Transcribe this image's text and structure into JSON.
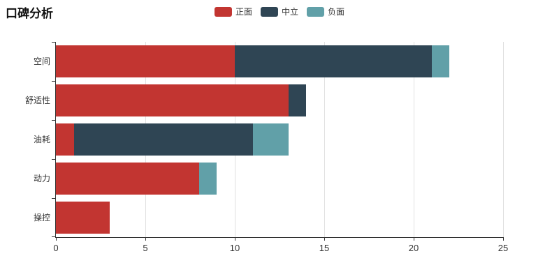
{
  "chart_data": {
    "type": "bar",
    "orientation": "horizontal",
    "stacked": true,
    "title": "口碑分析",
    "categories": [
      "空间",
      "舒适性",
      "油耗",
      "动力",
      "操控"
    ],
    "series": [
      {
        "name": "正面",
        "color": "#c23531",
        "values": [
          10,
          13,
          1,
          8,
          3
        ]
      },
      {
        "name": "中立",
        "color": "#2f4554",
        "values": [
          11,
          1,
          10,
          0,
          0
        ]
      },
      {
        "name": "负面",
        "color": "#61a0a8",
        "values": [
          1,
          0,
          2,
          1,
          0
        ]
      }
    ],
    "totals": [
      22,
      14,
      13,
      9,
      3
    ],
    "xlabel": "",
    "ylabel": "",
    "xlim": [
      0,
      25
    ],
    "x_ticks": [
      0,
      5,
      10,
      15,
      20,
      25
    ],
    "legend_position": "top-center",
    "grid": true,
    "axis_color": "#333333",
    "grid_color": "#e0e0e0",
    "label_color": "#333333",
    "title_color": "#111111"
  }
}
